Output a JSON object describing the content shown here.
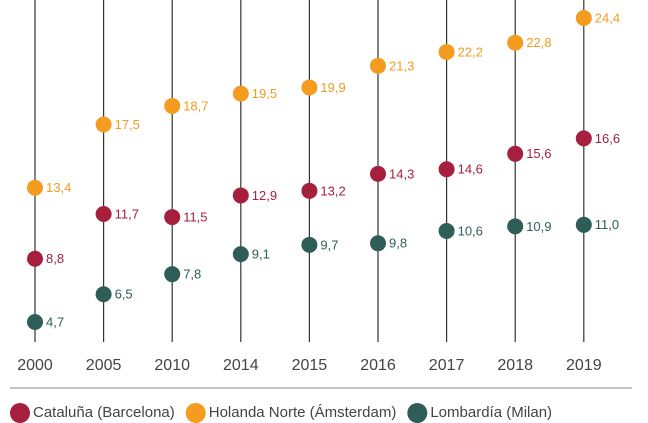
{
  "chart_data": {
    "type": "dot",
    "categories": [
      "2000",
      "2005",
      "2010",
      "2014",
      "2015",
      "2016",
      "2017",
      "2018",
      "2019"
    ],
    "series": [
      {
        "name": "Cataluña (Barcelona)",
        "color": "#a6203e",
        "values": [
          8.8,
          11.7,
          11.5,
          12.9,
          13.2,
          14.3,
          14.6,
          15.6,
          16.6
        ],
        "value_labels": [
          "8,8",
          "11,7",
          "11,5",
          "12,9",
          "13,2",
          "14,3",
          "14,6",
          "15,6",
          "16,6"
        ]
      },
      {
        "name": "Holanda Norte (Ámsterdam)",
        "color": "#f39c1f",
        "values": [
          13.4,
          17.5,
          18.7,
          19.5,
          19.9,
          21.3,
          22.2,
          22.8,
          24.4
        ],
        "value_labels": [
          "13,4",
          "17,5",
          "18,7",
          "19,5",
          "19,9",
          "21,3",
          "22,2",
          "22,8",
          "24,4"
        ]
      },
      {
        "name": "Lombardía (Milan)",
        "color": "#2f5d57",
        "values": [
          4.7,
          6.5,
          7.8,
          9.1,
          9.7,
          9.8,
          10.6,
          10.9,
          11.0
        ],
        "value_labels": [
          "4,7",
          "6,5",
          "7,8",
          "9,1",
          "9,7",
          "9,8",
          "10,6",
          "10,9",
          "11,0"
        ]
      }
    ]
  }
}
